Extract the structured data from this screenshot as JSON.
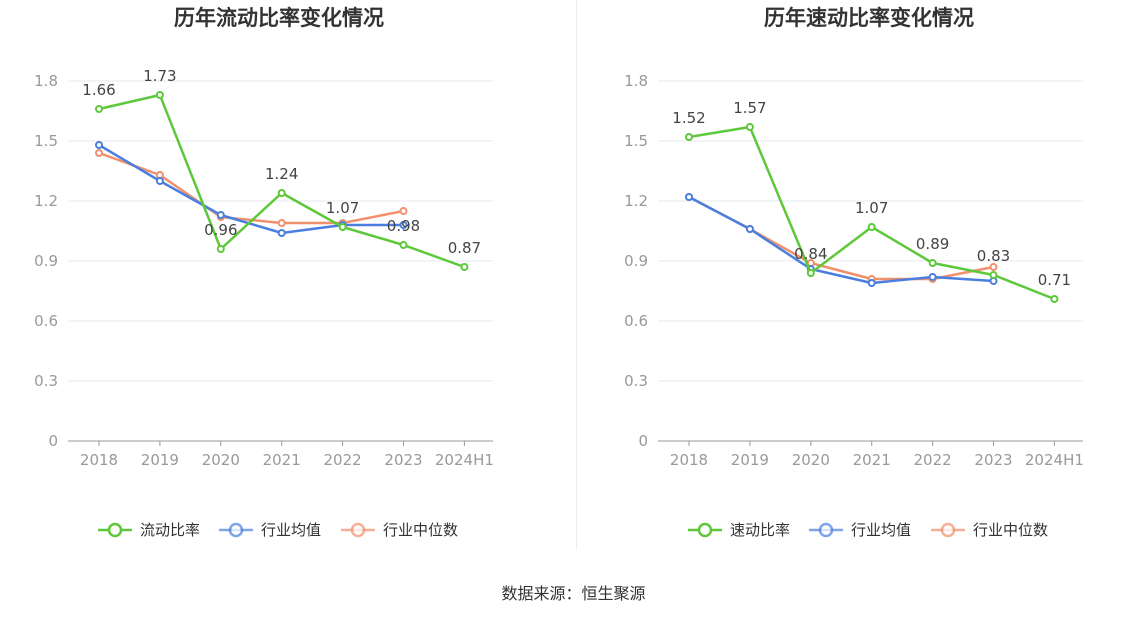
{
  "source_text": "数据来源：恒生聚源",
  "colors": {
    "primary": "#5dc83a",
    "average": "#4a7fe0",
    "median": "#f0906c",
    "grid": "#e6e9f2",
    "axis": "#999999",
    "tick_text": "#999999",
    "label_text": "#444444",
    "title_text": "#333333"
  },
  "chart_data": [
    {
      "type": "line",
      "title": "历年流动比率变化情况",
      "categories": [
        "2018",
        "2019",
        "2020",
        "2021",
        "2022",
        "2023",
        "2024H1"
      ],
      "ylim": [
        0,
        1.8
      ],
      "yticks": [
        "0",
        "0.3",
        "0.6",
        "0.9",
        "1.2",
        "1.5",
        "1.8"
      ],
      "grid": true,
      "legend_position": "bottom",
      "series": [
        {
          "name": "流动比率",
          "values": [
            1.66,
            1.73,
            0.96,
            1.24,
            1.07,
            0.98,
            0.87
          ],
          "data_labels": [
            "1.66",
            "1.73",
            "0.96",
            "1.24",
            "1.07",
            "0.98",
            "0.87"
          ]
        },
        {
          "name": "行业均值",
          "values": [
            1.48,
            1.3,
            1.13,
            1.04,
            1.08,
            1.08,
            null
          ]
        },
        {
          "name": "行业中位数",
          "values": [
            1.44,
            1.33,
            1.12,
            1.09,
            1.09,
            1.15,
            null
          ]
        }
      ]
    },
    {
      "type": "line",
      "title": "历年速动比率变化情况",
      "categories": [
        "2018",
        "2019",
        "2020",
        "2021",
        "2022",
        "2023",
        "2024H1"
      ],
      "ylim": [
        0,
        1.8
      ],
      "yticks": [
        "0",
        "0.3",
        "0.6",
        "0.9",
        "1.2",
        "1.5",
        "1.8"
      ],
      "grid": true,
      "legend_position": "bottom",
      "series": [
        {
          "name": "速动比率",
          "values": [
            1.52,
            1.57,
            0.84,
            1.07,
            0.89,
            0.83,
            0.71
          ],
          "data_labels": [
            "1.52",
            "1.57",
            "0.84",
            "1.07",
            "0.89",
            "0.83",
            "0.71"
          ]
        },
        {
          "name": "行业均值",
          "values": [
            1.22,
            1.06,
            0.86,
            0.79,
            0.82,
            0.8,
            null
          ]
        },
        {
          "name": "行业中位数",
          "values": [
            1.22,
            1.06,
            0.89,
            0.81,
            0.81,
            0.87,
            null
          ]
        }
      ]
    }
  ]
}
